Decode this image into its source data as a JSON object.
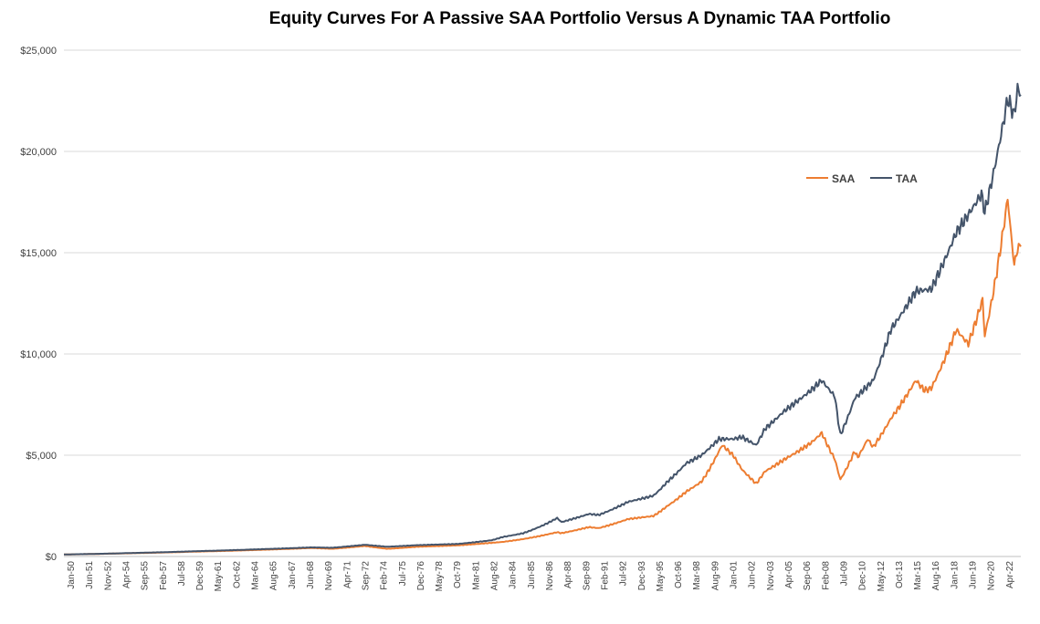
{
  "chart_data": {
    "type": "line",
    "title": "Equity Curves For A Passive SAA Portfolio Versus A Dynamic TAA Portfolio",
    "xlabel": "",
    "ylabel": "",
    "ylim": [
      0,
      25000
    ],
    "yticks": [
      "$0",
      "$5,000",
      "$10,000",
      "$15,000",
      "$20,000",
      "$25,000"
    ],
    "grid": "horizontal",
    "legend_position": "right",
    "x_range": [
      "1950-01",
      "2022-12"
    ],
    "x_ticks": [
      "Jan-50",
      "Jun-51",
      "Nov-52",
      "Apr-54",
      "Sep-55",
      "Feb-57",
      "Jul-58",
      "Dec-59",
      "May-61",
      "Oct-62",
      "Mar-64",
      "Aug-65",
      "Jan-67",
      "Jun-68",
      "Nov-69",
      "Apr-71",
      "Sep-72",
      "Feb-74",
      "Jul-75",
      "Dec-76",
      "May-78",
      "Oct-79",
      "Mar-81",
      "Aug-82",
      "Jan-84",
      "Jun-85",
      "Nov-86",
      "Apr-88",
      "Sep-89",
      "Feb-91",
      "Jul-92",
      "Dec-93",
      "May-95",
      "Oct-96",
      "Mar-98",
      "Aug-99",
      "Jan-01",
      "Jun-02",
      "Nov-03",
      "Apr-05",
      "Sep-06",
      "Feb-08",
      "Jul-09",
      "Dec-10",
      "May-12",
      "Oct-13",
      "Mar-15",
      "Aug-16",
      "Jan-18",
      "Jun-19",
      "Nov-20",
      "Apr-22"
    ],
    "series": [
      {
        "name": "SAA",
        "color": "#ED7D31",
        "points": [
          [
            "1950-01",
            100
          ],
          [
            "1955-01",
            160
          ],
          [
            "1960-01",
            240
          ],
          [
            "1965-01",
            330
          ],
          [
            "1968-12",
            420
          ],
          [
            "1970-06",
            380
          ],
          [
            "1972-12",
            520
          ],
          [
            "1974-09",
            380
          ],
          [
            "1976-12",
            480
          ],
          [
            "1980-01",
            550
          ],
          [
            "1983-06",
            720
          ],
          [
            "1985-01",
            860
          ],
          [
            "1987-08",
            1200
          ],
          [
            "1987-12",
            1150
          ],
          [
            "1990-01",
            1450
          ],
          [
            "1990-10",
            1400
          ],
          [
            "1993-01",
            1850
          ],
          [
            "1994-12",
            2000
          ],
          [
            "1996-01",
            2500
          ],
          [
            "1997-06",
            3200
          ],
          [
            "1998-08",
            3700
          ],
          [
            "1999-12",
            5200
          ],
          [
            "2000-03",
            5500
          ],
          [
            "2001-01",
            5000
          ],
          [
            "2001-09",
            4300
          ],
          [
            "2002-10",
            3600
          ],
          [
            "2003-06",
            4200
          ],
          [
            "2004-12",
            4800
          ],
          [
            "2006-12",
            5600
          ],
          [
            "2007-10",
            6100
          ],
          [
            "2008-10",
            4800
          ],
          [
            "2009-03",
            3800
          ],
          [
            "2010-04",
            5200
          ],
          [
            "2010-07",
            4900
          ],
          [
            "2011-04",
            5800
          ],
          [
            "2011-09",
            5400
          ],
          [
            "2013-01",
            6800
          ],
          [
            "2014-12",
            8700
          ],
          [
            "2015-08",
            8200
          ],
          [
            "2016-02",
            8300
          ],
          [
            "2018-01",
            11200
          ],
          [
            "2018-12",
            10500
          ],
          [
            "2020-01",
            12700
          ],
          [
            "2020-03",
            10900
          ],
          [
            "2021-12",
            17700
          ],
          [
            "2022-06",
            14400
          ],
          [
            "2022-09",
            15200
          ],
          [
            "2022-12",
            15300
          ]
        ]
      },
      {
        "name": "TAA",
        "color": "#44546A",
        "points": [
          [
            "1950-01",
            100
          ],
          [
            "1955-01",
            170
          ],
          [
            "1960-01",
            260
          ],
          [
            "1965-01",
            360
          ],
          [
            "1968-12",
            450
          ],
          [
            "1970-06",
            430
          ],
          [
            "1972-12",
            580
          ],
          [
            "1974-09",
            480
          ],
          [
            "1976-12",
            560
          ],
          [
            "1980-01",
            620
          ],
          [
            "1982-08",
            800
          ],
          [
            "1983-06",
            960
          ],
          [
            "1985-01",
            1150
          ],
          [
            "1987-08",
            1900
          ],
          [
            "1987-12",
            1700
          ],
          [
            "1990-01",
            2100
          ],
          [
            "1990-10",
            2050
          ],
          [
            "1993-01",
            2700
          ],
          [
            "1994-12",
            3000
          ],
          [
            "1996-01",
            3700
          ],
          [
            "1997-06",
            4600
          ],
          [
            "1998-08",
            5000
          ],
          [
            "1999-12",
            5800
          ],
          [
            "2001-01",
            5800
          ],
          [
            "2001-09",
            5900
          ],
          [
            "2002-10",
            5500
          ],
          [
            "2003-06",
            6300
          ],
          [
            "2004-12",
            7200
          ],
          [
            "2006-12",
            8200
          ],
          [
            "2007-10",
            8700
          ],
          [
            "2008-10",
            7900
          ],
          [
            "2009-03",
            6000
          ],
          [
            "2010-04",
            7800
          ],
          [
            "2011-09",
            8700
          ],
          [
            "2013-01",
            11200
          ],
          [
            "2014-12",
            13100
          ],
          [
            "2016-02",
            13200
          ],
          [
            "2018-01",
            16000
          ],
          [
            "2019-12",
            17900
          ],
          [
            "2020-03",
            17000
          ],
          [
            "2021-12",
            22600
          ],
          [
            "2022-06",
            21800
          ],
          [
            "2022-09",
            23100
          ],
          [
            "2022-12",
            22800
          ]
        ]
      }
    ]
  }
}
